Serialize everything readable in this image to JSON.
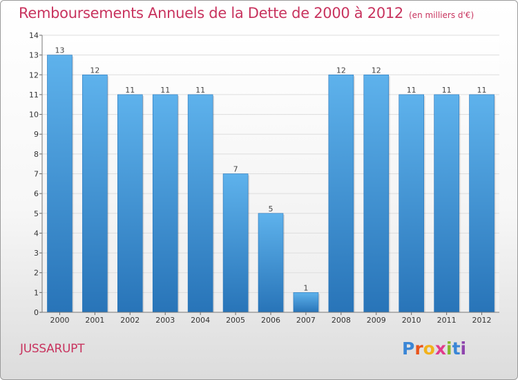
{
  "header": {
    "title": "Remboursements Annuels de la Dette de 2000 à 2012",
    "unit": "(en milliers d'€)"
  },
  "footer": {
    "commune": "JUSSARUPT",
    "logo_letters": [
      "P",
      "r",
      "o",
      "x",
      "i",
      "t",
      "i"
    ],
    "logo_colors": [
      "#3a86d6",
      "#e9551c",
      "#f2b21b",
      "#e23b8c",
      "#86b92b",
      "#3a86d6",
      "#8e44ad"
    ]
  },
  "colors": {
    "title": "#c8335e",
    "bar": "#3f97dc",
    "bar_light": "#5eb2ec",
    "bar_dark": "#2874b8",
    "grid": "#dddddd"
  },
  "chart_data": {
    "type": "bar",
    "title": "Remboursements Annuels de la Dette de 2000 à 2012",
    "subtitle": "(en milliers d'€)",
    "xlabel": "",
    "ylabel": "",
    "categories": [
      "2000",
      "2001",
      "2002",
      "2003",
      "2004",
      "2005",
      "2006",
      "2007",
      "2008",
      "2009",
      "2010",
      "2011",
      "2012"
    ],
    "values": [
      13,
      12,
      11,
      11,
      11,
      7,
      5,
      1,
      12,
      12,
      11,
      11,
      11
    ],
    "ylim": [
      0,
      14
    ],
    "yticks": [
      0,
      1,
      2,
      3,
      4,
      5,
      6,
      7,
      8,
      9,
      10,
      11,
      12,
      13,
      14
    ],
    "grid": true,
    "legend": "none"
  }
}
